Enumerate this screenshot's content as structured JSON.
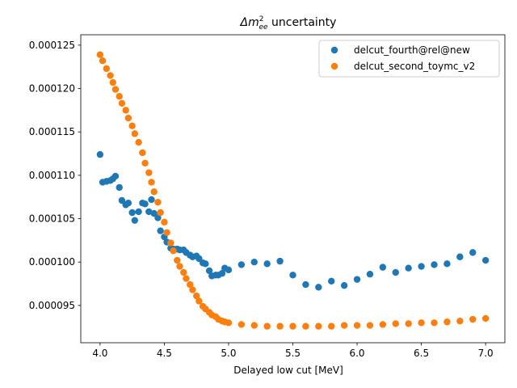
{
  "chart_data": {
    "type": "scatter",
    "title_prefix": "Δm",
    "title_sup": "2",
    "title_sub": "ee",
    "title_suffix": " uncertainty",
    "xlabel": "Delayed low cut [MeV]",
    "ylabel": "",
    "xlim": [
      3.85,
      7.15
    ],
    "ylim": [
      9.07e-05,
      0.0001262
    ],
    "xticks": [
      4.0,
      4.5,
      5.0,
      5.5,
      6.0,
      6.5,
      7.0
    ],
    "xtick_labels": [
      "4.0",
      "4.5",
      "5.0",
      "5.5",
      "6.0",
      "6.5",
      "7.0"
    ],
    "yticks": [
      9.5e-05,
      0.0001,
      0.000105,
      0.00011,
      0.000115,
      0.00012,
      0.000125
    ],
    "ytick_labels": [
      "0.000095",
      "0.000100",
      "0.000105",
      "0.000110",
      "0.000115",
      "0.000120",
      "0.000125"
    ],
    "grid": false,
    "legend_position": "top-right",
    "series": [
      {
        "name": "delcut_fourth@rel@new",
        "color": "#1f77b4",
        "x": [
          4.0,
          4.02,
          4.05,
          4.08,
          4.1,
          4.12,
          4.15,
          4.17,
          4.2,
          4.22,
          4.25,
          4.27,
          4.3,
          4.33,
          4.35,
          4.38,
          4.4,
          4.42,
          4.45,
          4.47,
          4.5,
          4.52,
          4.55,
          4.57,
          4.6,
          4.62,
          4.65,
          4.67,
          4.7,
          4.72,
          4.75,
          4.77,
          4.8,
          4.82,
          4.85,
          4.87,
          4.9,
          4.92,
          4.95,
          4.97,
          5.0,
          5.1,
          5.2,
          5.3,
          5.4,
          5.5,
          5.6,
          5.7,
          5.8,
          5.9,
          6.0,
          6.1,
          6.2,
          6.3,
          6.4,
          6.5,
          6.6,
          6.7,
          6.8,
          6.9,
          7.0
        ],
        "y": [
          0.0001124,
          0.0001092,
          0.0001093,
          0.0001094,
          0.0001096,
          0.0001099,
          0.0001086,
          0.0001071,
          0.0001066,
          0.0001068,
          0.0001057,
          0.0001048,
          0.0001058,
          0.0001068,
          0.0001067,
          0.0001058,
          0.0001072,
          0.0001056,
          0.0001051,
          0.0001036,
          0.0001029,
          0.0001023,
          0.0001016,
          0.0001015,
          0.0001015,
          0.0001014,
          0.0001014,
          0.0001011,
          0.0001008,
          0.0001006,
          0.0001007,
          0.0001004,
          9.99e-05,
          9.98e-05,
          9.9e-05,
          9.84e-05,
          9.85e-05,
          9.85e-05,
          9.87e-05,
          9.93e-05,
          9.91e-05,
          9.97e-05,
          0.0001,
          9.98e-05,
          0.0001001,
          9.85e-05,
          9.74e-05,
          9.71e-05,
          9.78e-05,
          9.73e-05,
          9.8e-05,
          9.86e-05,
          9.94e-05,
          9.88e-05,
          9.93e-05,
          9.95e-05,
          9.97e-05,
          9.98e-05,
          0.0001006,
          0.0001011,
          0.0001002
        ]
      },
      {
        "name": "delcut_second_toymc_v2",
        "color": "#ff7f0e",
        "x": [
          4.0,
          4.02,
          4.05,
          4.08,
          4.1,
          4.12,
          4.15,
          4.17,
          4.2,
          4.22,
          4.25,
          4.27,
          4.3,
          4.33,
          4.35,
          4.38,
          4.4,
          4.42,
          4.45,
          4.47,
          4.5,
          4.52,
          4.55,
          4.57,
          4.6,
          4.62,
          4.65,
          4.67,
          4.7,
          4.72,
          4.75,
          4.77,
          4.8,
          4.82,
          4.85,
          4.87,
          4.9,
          4.92,
          4.95,
          4.97,
          5.0,
          5.1,
          5.2,
          5.3,
          5.4,
          5.5,
          5.6,
          5.7,
          5.8,
          5.9,
          6.0,
          6.1,
          6.2,
          6.3,
          6.4,
          6.5,
          6.6,
          6.7,
          6.8,
          6.9,
          7.0
        ],
        "y": [
          0.0001239,
          0.0001232,
          0.0001223,
          0.0001215,
          0.0001207,
          0.0001199,
          0.0001191,
          0.0001183,
          0.0001175,
          0.0001166,
          0.0001157,
          0.0001148,
          0.0001138,
          0.0001126,
          0.0001114,
          0.0001103,
          0.0001092,
          0.0001081,
          0.0001069,
          0.0001057,
          0.0001046,
          0.0001034,
          0.0001022,
          0.0001013,
          0.0001002,
          9.95e-05,
          9.88e-05,
          9.81e-05,
          9.74e-05,
          9.68e-05,
          9.61e-05,
          9.55e-05,
          9.49e-05,
          9.46e-05,
          9.42e-05,
          9.39e-05,
          9.37e-05,
          9.34e-05,
          9.32e-05,
          9.31e-05,
          9.3e-05,
          9.28e-05,
          9.27e-05,
          9.26e-05,
          9.26e-05,
          9.26e-05,
          9.26e-05,
          9.26e-05,
          9.26e-05,
          9.27e-05,
          9.27e-05,
          9.27e-05,
          9.28e-05,
          9.29e-05,
          9.29e-05,
          9.3e-05,
          9.3e-05,
          9.31e-05,
          9.32e-05,
          9.34e-05,
          9.35e-05
        ]
      }
    ]
  }
}
